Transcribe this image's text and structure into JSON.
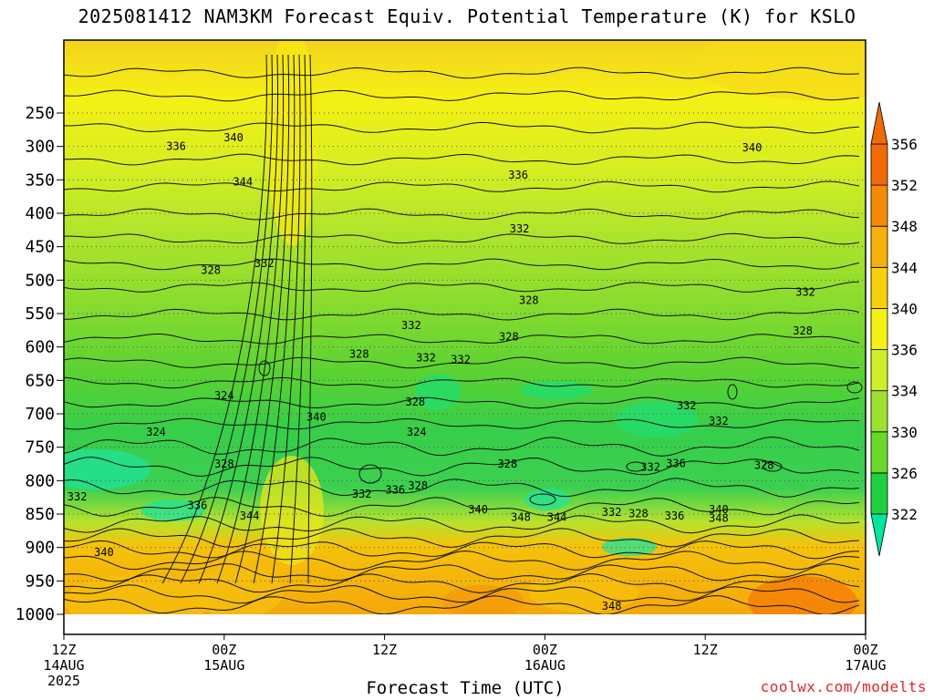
{
  "chart_data": {
    "type": "heatmap",
    "title": "2025081412 NAM3KM Forecast Equiv. Potential Temperature (K) for KSLO",
    "xlabel": "Forecast Time (UTC)",
    "ylabel": "",
    "y_axis": {
      "range": [
        1000,
        200
      ],
      "ticks": [
        250,
        300,
        350,
        400,
        450,
        500,
        550,
        600,
        650,
        700,
        750,
        800,
        850,
        900,
        950,
        1000
      ]
    },
    "x_axis": {
      "range_hours": [
        0,
        60
      ],
      "ticks": [
        {
          "hour": 0,
          "lines": [
            "12Z",
            "14AUG",
            "2025"
          ]
        },
        {
          "hour": 12,
          "lines": [
            "00Z",
            "15AUG"
          ]
        },
        {
          "hour": 24,
          "lines": [
            "12Z"
          ]
        },
        {
          "hour": 36,
          "lines": [
            "00Z",
            "16AUG"
          ]
        },
        {
          "hour": 48,
          "lines": [
            "12Z"
          ]
        },
        {
          "hour": 60,
          "lines": [
            "00Z",
            "17AUG"
          ]
        }
      ]
    },
    "colorbar": {
      "levels": [
        322,
        326,
        330,
        334,
        336,
        340,
        344,
        348,
        352,
        356
      ],
      "colors": [
        "#00e6a0",
        "#20d040",
        "#6ad82a",
        "#9ee030",
        "#cfee2a",
        "#f5f014",
        "#f5d20c",
        "#f5b00a",
        "#f58a08",
        "#f06a06"
      ]
    },
    "contour_labels": [
      {
        "t": 12.7,
        "p": 287,
        "v": "340"
      },
      {
        "t": 8.4,
        "p": 300,
        "v": "336"
      },
      {
        "t": 13.4,
        "p": 353,
        "v": "344"
      },
      {
        "t": 51.5,
        "p": 302,
        "v": "340"
      },
      {
        "t": 34.0,
        "p": 343,
        "v": "336"
      },
      {
        "t": 34.1,
        "p": 423,
        "v": "332"
      },
      {
        "t": 15.0,
        "p": 475,
        "v": "332"
      },
      {
        "t": 11.0,
        "p": 485,
        "v": "328"
      },
      {
        "t": 55.5,
        "p": 518,
        "v": "332"
      },
      {
        "t": 34.8,
        "p": 530,
        "v": "328"
      },
      {
        "t": 55.3,
        "p": 576,
        "v": "328"
      },
      {
        "t": 26.0,
        "p": 568,
        "v": "332"
      },
      {
        "t": 33.3,
        "p": 585,
        "v": "328"
      },
      {
        "t": 22.1,
        "p": 611,
        "v": "328"
      },
      {
        "t": 27.1,
        "p": 616,
        "v": "332"
      },
      {
        "t": 29.7,
        "p": 619,
        "v": "332"
      },
      {
        "t": 12.0,
        "p": 673,
        "v": "324"
      },
      {
        "t": 26.3,
        "p": 682,
        "v": "328"
      },
      {
        "t": 18.9,
        "p": 705,
        "v": "340"
      },
      {
        "t": 46.6,
        "p": 688,
        "v": "332"
      },
      {
        "t": 26.4,
        "p": 727,
        "v": "324"
      },
      {
        "t": 49.0,
        "p": 711,
        "v": "332"
      },
      {
        "t": 6.9,
        "p": 727,
        "v": "324"
      },
      {
        "t": 12.0,
        "p": 775,
        "v": "328"
      },
      {
        "t": 33.2,
        "p": 775,
        "v": "328"
      },
      {
        "t": 43.9,
        "p": 780,
        "v": "332"
      },
      {
        "t": 45.8,
        "p": 774,
        "v": "336"
      },
      {
        "t": 52.4,
        "p": 777,
        "v": "328"
      },
      {
        "t": 26.5,
        "p": 808,
        "v": "328"
      },
      {
        "t": 24.8,
        "p": 814,
        "v": "336"
      },
      {
        "t": 22.3,
        "p": 820,
        "v": "332"
      },
      {
        "t": 1.0,
        "p": 824,
        "v": "332"
      },
      {
        "t": 10.0,
        "p": 837,
        "v": "336"
      },
      {
        "t": 13.9,
        "p": 853,
        "v": "344"
      },
      {
        "t": 31.0,
        "p": 843,
        "v": "340"
      },
      {
        "t": 34.2,
        "p": 855,
        "v": "348"
      },
      {
        "t": 36.9,
        "p": 855,
        "v": "344"
      },
      {
        "t": 41.0,
        "p": 847,
        "v": "332"
      },
      {
        "t": 43.0,
        "p": 849,
        "v": "328"
      },
      {
        "t": 45.7,
        "p": 853,
        "v": "336"
      },
      {
        "t": 49.0,
        "p": 843,
        "v": "340"
      },
      {
        "t": 49.0,
        "p": 856,
        "v": "348"
      },
      {
        "t": 3.0,
        "p": 907,
        "v": "340"
      },
      {
        "t": 41.0,
        "p": 988,
        "v": "348"
      }
    ]
  },
  "xlabel_text": "Forecast Time (UTC)",
  "credit": "coolwx.com/modelts"
}
